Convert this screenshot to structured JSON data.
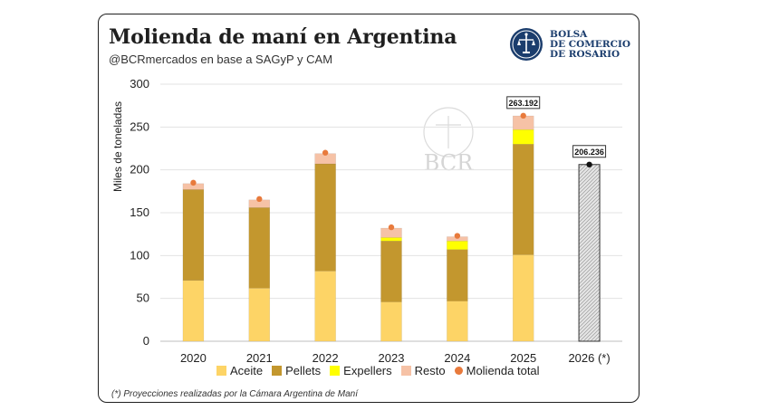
{
  "chart_data": {
    "type": "bar",
    "title": "Molienda de maní en Argentina",
    "subtitle": "@BCRmercados en base a SAGyP y CAM",
    "ylabel": "Miles de toneladas",
    "xlabel": "",
    "ylim": [
      0,
      300
    ],
    "yticks": [
      0,
      50,
      100,
      150,
      200,
      250,
      300
    ],
    "categories": [
      "2020",
      "2021",
      "2022",
      "2023",
      "2024",
      "2025",
      "2026 (*)"
    ],
    "series": [
      {
        "name": "Aceite",
        "color": "#fdd466",
        "values": [
          71,
          62,
          82,
          46,
          47,
          101,
          null
        ]
      },
      {
        "name": "Pellets",
        "color": "#c3972e",
        "values": [
          106,
          94,
          125,
          71,
          60,
          129,
          null
        ]
      },
      {
        "name": "Expellers",
        "color": "#ffff00",
        "values": [
          0,
          0,
          0,
          4,
          10,
          17,
          null
        ]
      },
      {
        "name": "Resto",
        "color": "#f6c2a6",
        "values": [
          7,
          9,
          12,
          11,
          5,
          16,
          null
        ]
      }
    ],
    "total": {
      "name": "Molienda total",
      "color": "#e87a3c",
      "values": [
        185,
        166,
        220,
        133,
        123,
        263.192,
        206.236
      ]
    },
    "projection": {
      "category": "2026 (*)",
      "value": 206.236
    },
    "data_labels": [
      {
        "category": "2025",
        "text": "263.192"
      },
      {
        "category": "2026 (*)",
        "text": "206.236"
      }
    ],
    "grid": true,
    "legend_position": "bottom"
  },
  "logo": {
    "line1": "BOLSA",
    "line2": "DE COMERCIO",
    "line3": "DE ROSARIO"
  },
  "watermark": "BCR",
  "footnote": "(*) Proyecciones realizadas por la Cámara Argentina de Maní",
  "legend": {
    "aceite": "Aceite",
    "pellets": "Pellets",
    "expellers": "Expellers",
    "resto": "Resto",
    "total": "Molienda total"
  }
}
